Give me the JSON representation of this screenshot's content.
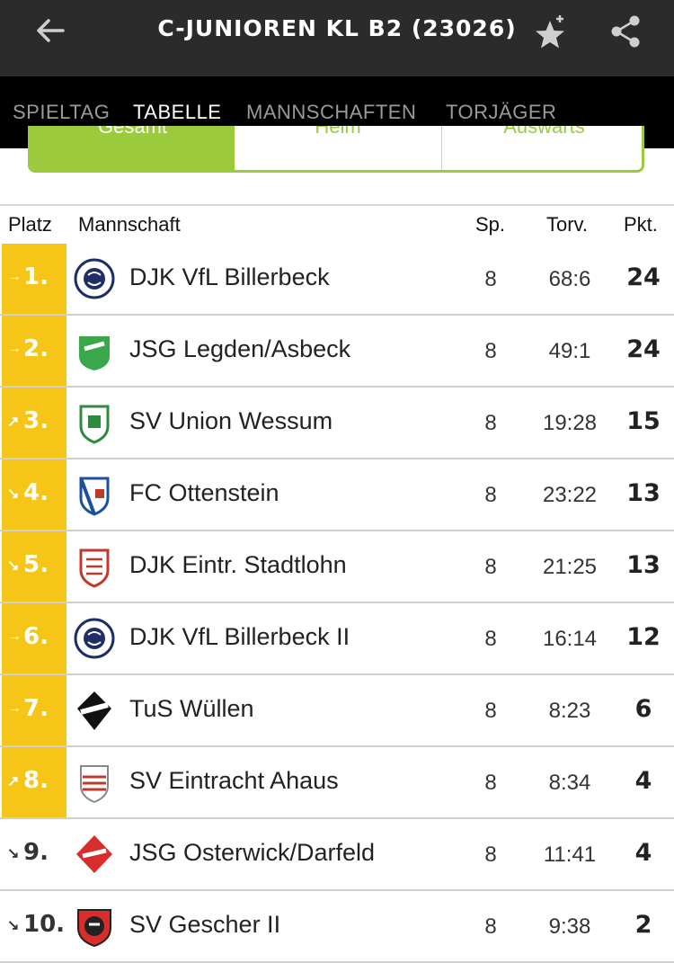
{
  "header": {
    "back_icon": "arrow-left-icon",
    "title": "C-JUNIOREN KL B2 (23026)",
    "favorite_icon": "star-plus-icon",
    "share_icon": "share-icon"
  },
  "tabs": [
    {
      "label": "SPIELTAG",
      "active": false
    },
    {
      "label": "TABELLE",
      "active": true
    },
    {
      "label": "MANNSCHAFTEN",
      "active": false
    },
    {
      "label": "TORJÄGER",
      "active": false
    }
  ],
  "segments": [
    "Gesamt",
    "Heim",
    "Auswärts"
  ],
  "colors": {
    "accent": "#9bcb3c",
    "highlight": "#f5c518",
    "topbar": "#2b2b2b",
    "tabbar": "#000000"
  },
  "table": {
    "columns": {
      "platz": "Platz",
      "mannschaft": "Mannschaft",
      "sp": "Sp.",
      "torv": "Torv.",
      "pkt": "Pkt."
    },
    "rows": [
      {
        "rank": "1.",
        "trend": "→",
        "team": "DJK VfL Billerbeck",
        "sp": "8",
        "torv": "68:6",
        "pkt": "24"
      },
      {
        "rank": "2.",
        "trend": "→",
        "team": "JSG Legden/Asbeck",
        "sp": "8",
        "torv": "49:1",
        "pkt": "24"
      },
      {
        "rank": "3.",
        "trend": "↗",
        "team": "SV Union Wessum",
        "sp": "8",
        "torv": "19:28",
        "pkt": "15"
      },
      {
        "rank": "4.",
        "trend": "↘",
        "team": "FC Ottenstein",
        "sp": "8",
        "torv": "23:22",
        "pkt": "13"
      },
      {
        "rank": "5.",
        "trend": "↘",
        "team": "DJK Eintr. Stadtlohn",
        "sp": "8",
        "torv": "21:25",
        "pkt": "13"
      },
      {
        "rank": "6.",
        "trend": "→",
        "team": "DJK VfL Billerbeck II",
        "sp": "8",
        "torv": "16:14",
        "pkt": "12"
      },
      {
        "rank": "7.",
        "trend": "→",
        "team": "TuS Wüllen",
        "sp": "8",
        "torv": "8:23",
        "pkt": "6"
      },
      {
        "rank": "8.",
        "trend": "↗",
        "team": "SV Eintracht Ahaus",
        "sp": "8",
        "torv": "8:34",
        "pkt": "4"
      },
      {
        "rank": "9.",
        "trend": "↘",
        "team": "JSG Osterwick/Darfeld",
        "sp": "8",
        "torv": "11:41",
        "pkt": "4"
      },
      {
        "rank": "10.",
        "trend": "↘",
        "team": "SV Gescher II",
        "sp": "8",
        "torv": "9:38",
        "pkt": "2"
      }
    ]
  }
}
